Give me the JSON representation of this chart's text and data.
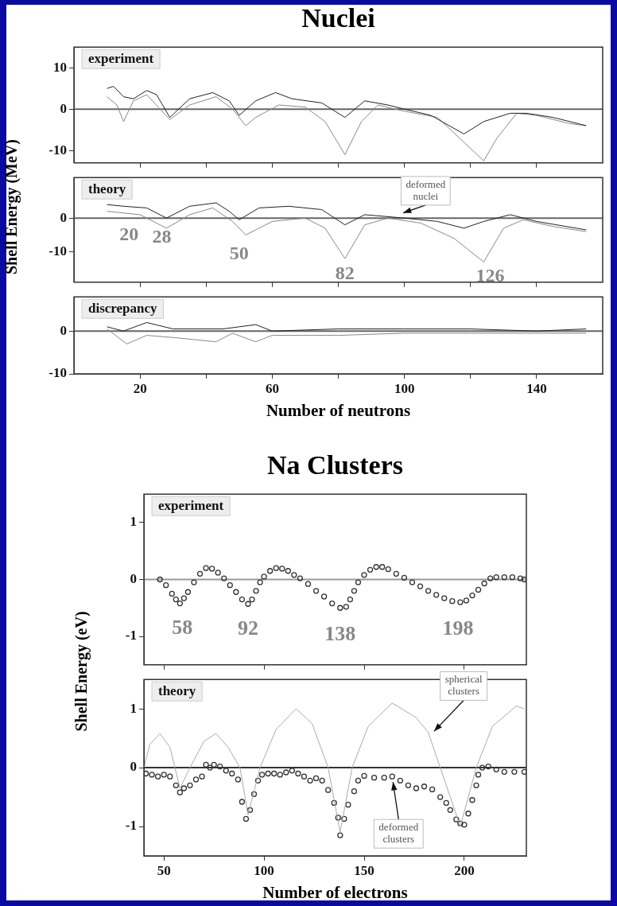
{
  "chart_data": [
    {
      "type": "line",
      "title": "Nuclei",
      "subtitle": "experiment",
      "xlim": [
        0,
        160
      ],
      "xticks": [
        20,
        {
          "value": 40,
          "label": null
        },
        60,
        {
          "value": 80,
          "label": null
        },
        100,
        {
          "value": 120,
          "label": null
        },
        140
      ],
      "ylim": [
        -13,
        15
      ],
      "yticks": [
        10,
        0,
        -10
      ],
      "tick_labels": "y",
      "marker": "none",
      "ref_lines": [
        {
          "axis": "y",
          "value": 0,
          "color": "#666666"
        }
      ],
      "series": [
        {
          "color": "#222222",
          "x": [
            10,
            12,
            15,
            18,
            22,
            25,
            29,
            35,
            42,
            47,
            50,
            55,
            61,
            66,
            75,
            82,
            88,
            95,
            100,
            108,
            118,
            124,
            132,
            137,
            145,
            155
          ],
          "values": [
            5,
            5.5,
            3,
            2.5,
            4.5,
            3.5,
            -2,
            2.5,
            4,
            2,
            -1.5,
            2,
            4,
            2.5,
            1.5,
            -2,
            2,
            1,
            0,
            -1.5,
            -6,
            -3,
            -1,
            -1,
            -2,
            -4
          ]
        },
        {
          "color": "#888888",
          "x": [
            10,
            13,
            15,
            18,
            22,
            29,
            35,
            43,
            48,
            52,
            55,
            62,
            70,
            76,
            82,
            87,
            92,
            100,
            110,
            118,
            124,
            128,
            134,
            140,
            150,
            155
          ],
          "values": [
            3,
            1,
            -3,
            2,
            3.5,
            -2.5,
            1,
            3,
            0,
            -4,
            -2,
            1,
            0.5,
            -3,
            -11,
            -3,
            1,
            -0.5,
            -2,
            -8,
            -12.5,
            -7,
            -1,
            -1.5,
            -3.5,
            -4
          ]
        }
      ]
    },
    {
      "type": "line",
      "subtitle": "theory",
      "ylabel": "Shell Energy (MeV)",
      "xlim": [
        0,
        160
      ],
      "xticks": [
        20,
        {
          "value": 40,
          "label": null
        },
        60,
        {
          "value": 80,
          "label": null
        },
        100,
        {
          "value": 120,
          "label": null
        },
        140
      ],
      "ylim": [
        -19,
        12
      ],
      "yticks": [
        0,
        -10
      ],
      "tick_labels": "y",
      "marker": "none",
      "ref_lines": [
        {
          "axis": "y",
          "value": 0,
          "color": "#666666"
        }
      ],
      "series": [
        {
          "color": "#222222",
          "x": [
            10,
            15,
            22,
            28,
            35,
            43,
            47,
            50,
            56,
            65,
            75,
            82,
            88,
            100,
            110,
            118,
            124,
            132,
            140,
            155
          ],
          "values": [
            4,
            3.5,
            3,
            0,
            3.5,
            4.5,
            2,
            -0.5,
            3,
            3.5,
            2.5,
            -2,
            1,
            0,
            -1,
            -3,
            -1,
            1,
            -1,
            -3.5
          ]
        },
        {
          "color": "#888888",
          "x": [
            10,
            20,
            28,
            35,
            42,
            48,
            52,
            60,
            70,
            76,
            82,
            88,
            95,
            105,
            115,
            124,
            130,
            136,
            145,
            155
          ],
          "values": [
            2,
            1,
            -3,
            1,
            3,
            -1,
            -5,
            -1,
            0,
            -3,
            -12,
            -2,
            0,
            -1.5,
            -6,
            -13,
            -3,
            -0.5,
            -2.5,
            -4
          ]
        }
      ],
      "annotations": [
        {
          "text": "20",
          "x": 20,
          "y": 1
        },
        {
          "text": "28",
          "x": 28,
          "y": -3
        },
        {
          "text": "50",
          "x": 50,
          "y": -0.5
        },
        {
          "text": "82",
          "x": 82,
          "y": -12
        },
        {
          "text": "126",
          "x": 124,
          "y": -13
        },
        {
          "text": "deformed nuclei",
          "x": 98,
          "y": 1
        }
      ]
    },
    {
      "type": "line",
      "subtitle": "discrepancy",
      "xlabel": "Number of neutrons",
      "xlim": [
        0,
        160
      ],
      "xticks": [
        20,
        {
          "value": 40,
          "label": null
        },
        60,
        {
          "value": 80,
          "label": null
        },
        100,
        {
          "value": 120,
          "label": null
        },
        140
      ],
      "ylim": [
        -10,
        8
      ],
      "yticks": [
        0,
        -10
      ],
      "marker": "none",
      "ref_lines": [
        {
          "axis": "y",
          "value": 0,
          "color": "#666666"
        }
      ],
      "series": [
        {
          "color": "#222222",
          "x": [
            10,
            15,
            22,
            30,
            45,
            55,
            60,
            80,
            100,
            120,
            140,
            155
          ],
          "values": [
            1,
            0,
            2,
            0.5,
            0.5,
            1.5,
            0,
            0.5,
            0.5,
            0.5,
            0,
            0.5
          ]
        },
        {
          "color": "#888888",
          "x": [
            10,
            16,
            22,
            30,
            43,
            48,
            55,
            60,
            80,
            100,
            120,
            140,
            155
          ],
          "values": [
            0.5,
            -3,
            -1,
            -1.5,
            -2.5,
            -0.5,
            -2.5,
            -1,
            -1,
            -0.5,
            -0.5,
            -0.5,
            -0.5
          ]
        }
      ]
    },
    {
      "type": "scatter",
      "title": "Na Clusters",
      "subtitle": "experiment",
      "ylabel": "Shell Energy (eV)",
      "xlim": [
        40,
        231
      ],
      "xticks": [
        50,
        100,
        150,
        200
      ],
      "ylim": [
        -1.5,
        1.5
      ],
      "yticks": [
        1,
        0,
        -1
      ],
      "tick_labels": "y",
      "marker": "circle",
      "ref_lines": [
        {
          "axis": "y",
          "value": 0,
          "color": "#999999"
        }
      ],
      "series": [
        {
          "color": "#333333",
          "x": [
            48,
            51,
            54,
            56,
            58,
            60,
            62,
            65,
            68,
            71,
            74,
            77,
            80,
            83,
            86,
            89,
            92,
            94,
            96,
            98,
            100,
            103,
            106,
            109,
            112,
            115,
            118,
            122,
            126,
            130,
            134,
            138,
            141,
            143,
            145,
            147,
            150,
            153,
            156,
            159,
            162,
            166,
            170,
            174,
            178,
            182,
            186,
            190,
            194,
            198,
            201,
            204,
            207,
            210,
            213,
            216,
            220,
            224,
            228,
            230
          ],
          "values": [
            0,
            -0.1,
            -0.25,
            -0.35,
            -0.42,
            -0.33,
            -0.22,
            -0.05,
            0.1,
            0.2,
            0.19,
            0.12,
            0.02,
            -0.1,
            -0.22,
            -0.35,
            -0.43,
            -0.35,
            -0.2,
            -0.05,
            0.05,
            0.15,
            0.2,
            0.19,
            0.15,
            0.08,
            0.02,
            -0.08,
            -0.2,
            -0.3,
            -0.42,
            -0.5,
            -0.48,
            -0.35,
            -0.2,
            -0.05,
            0.08,
            0.17,
            0.22,
            0.22,
            0.18,
            0.1,
            0.03,
            -0.05,
            -0.12,
            -0.2,
            -0.27,
            -0.33,
            -0.38,
            -0.4,
            -0.37,
            -0.28,
            -0.18,
            -0.07,
            0.02,
            0.04,
            0.04,
            0.04,
            0.02,
            0
          ]
        }
      ],
      "annotations": [
        {
          "text": "58",
          "x": 58,
          "y": -0.42
        },
        {
          "text": "92",
          "x": 92,
          "y": -0.43
        },
        {
          "text": "138",
          "x": 138,
          "y": -0.5
        },
        {
          "text": "198",
          "x": 198,
          "y": -0.4
        }
      ]
    },
    {
      "type": "scatter",
      "subtitle": "theory",
      "xlabel": "Number of electrons",
      "xlim": [
        40,
        231
      ],
      "xticks": [
        50,
        100,
        150,
        200
      ],
      "ylim": [
        -1.5,
        1.5
      ],
      "yticks": [
        1,
        0,
        -1
      ],
      "marker": "circle",
      "ref_lines": [
        {
          "axis": "y",
          "value": 0,
          "color": "#333333"
        }
      ],
      "series": [
        {
          "type": "line",
          "marker": "none",
          "color": "#aaaaaa",
          "x": [
            40,
            43,
            48,
            53,
            58,
            63,
            70,
            76,
            82,
            88,
            92,
            98,
            106,
            116,
            124,
            132,
            138,
            144,
            152,
            164,
            176,
            182,
            188,
            198,
            206,
            214,
            226,
            230
          ],
          "values": [
            0,
            0.4,
            0.58,
            0.35,
            -0.35,
            0,
            0.45,
            0.58,
            0.35,
            0,
            -0.8,
            0,
            0.65,
            1.0,
            0.75,
            0,
            -1.1,
            0,
            0.7,
            1.1,
            0.85,
            0.6,
            0,
            -1,
            0,
            0.7,
            1.05,
            1.0
          ]
        },
        {
          "color": "#333333",
          "x": [
            41,
            44,
            47,
            50,
            53,
            56,
            58,
            60,
            63,
            66,
            69,
            71,
            73,
            75,
            78,
            81,
            84,
            87,
            89,
            91,
            93,
            95,
            97,
            99,
            102,
            105,
            108,
            111,
            114,
            117,
            120,
            123,
            126,
            129,
            132,
            135,
            137,
            138,
            140,
            142,
            145,
            147,
            150,
            155,
            160,
            164,
            168,
            172,
            176,
            180,
            184,
            188,
            191,
            193,
            196,
            198,
            200,
            202,
            204,
            206,
            207,
            209,
            212,
            216,
            220,
            225,
            230
          ],
          "values": [
            -0.1,
            -0.12,
            -0.15,
            -0.12,
            -0.15,
            -0.3,
            -0.42,
            -0.35,
            -0.3,
            -0.2,
            -0.15,
            0.05,
            0,
            0.05,
            0.02,
            -0.05,
            -0.1,
            -0.2,
            -0.58,
            -0.87,
            -0.72,
            -0.45,
            -0.22,
            -0.12,
            -0.1,
            -0.1,
            -0.12,
            -0.08,
            -0.05,
            -0.1,
            -0.15,
            -0.22,
            -0.18,
            -0.22,
            -0.38,
            -0.6,
            -0.85,
            -1.15,
            -0.87,
            -0.63,
            -0.4,
            -0.22,
            -0.14,
            -0.17,
            -0.17,
            -0.15,
            -0.22,
            -0.3,
            -0.35,
            -0.32,
            -0.37,
            -0.5,
            -0.6,
            -0.72,
            -0.88,
            -0.95,
            -0.97,
            -0.78,
            -0.55,
            -0.3,
            -0.12,
            0,
            0.02,
            -0.03,
            -0.07,
            -0.07,
            -0.07
          ]
        }
      ],
      "annotations": [
        {
          "text": "spherical clusters",
          "x": 183,
          "y": 0.55
        },
        {
          "text": "deformed clusters",
          "x": 164,
          "y": -0.15
        }
      ]
    }
  ]
}
